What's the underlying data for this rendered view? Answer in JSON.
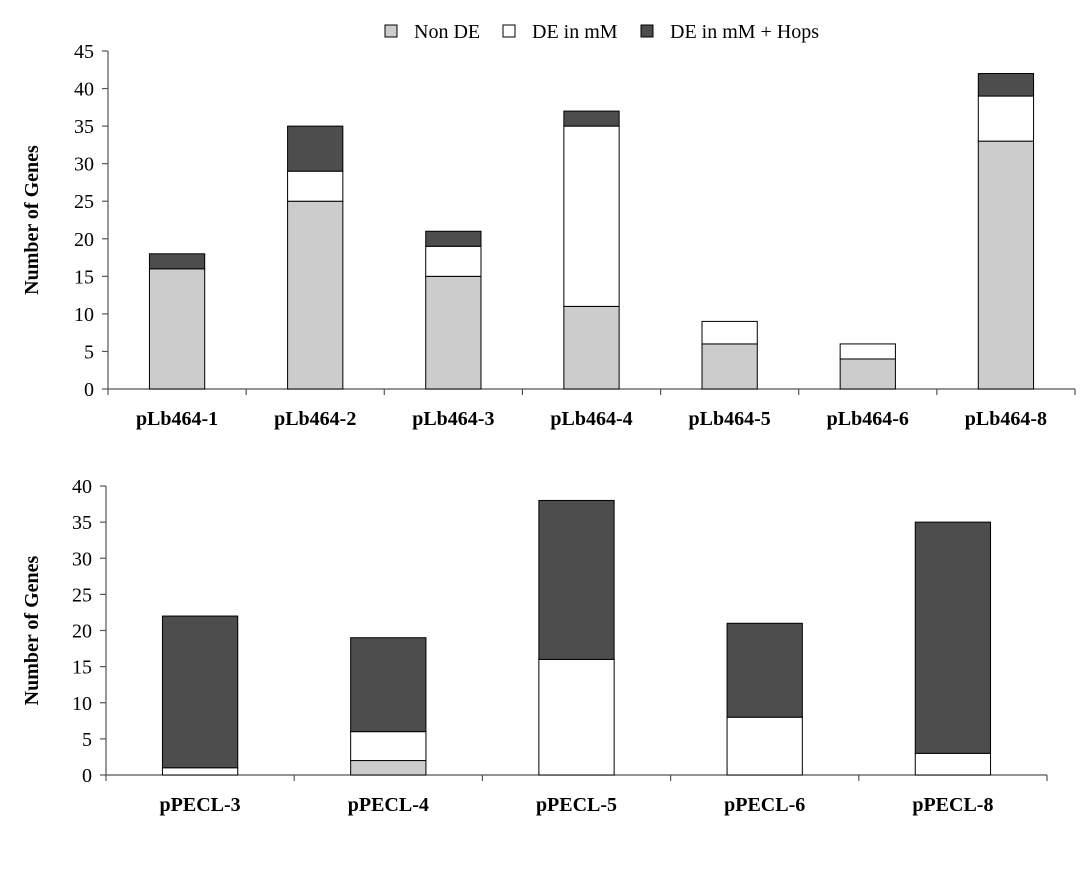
{
  "legend": {
    "items": [
      {
        "label": "Non DE",
        "color": "#cccccc"
      },
      {
        "label": "DE in mM",
        "color": "#ffffff"
      },
      {
        "label": "DE in mM + Hops",
        "color": "#4d4d4d"
      }
    ]
  },
  "chart_data": [
    {
      "type": "bar",
      "stacked": true,
      "ylabel": "Number of Genes",
      "ylim": [
        0,
        45
      ],
      "ytick_step": 5,
      "categories": [
        "pLb464-1",
        "pLb464-2",
        "pLb464-3",
        "pLb464-4",
        "pLb464-5",
        "pLb464-6",
        "pLb464-8"
      ],
      "series": [
        {
          "name": "Non DE",
          "color": "#cccccc",
          "values": [
            16,
            25,
            15,
            11,
            6,
            4,
            33
          ]
        },
        {
          "name": "DE in mM",
          "color": "#ffffff",
          "values": [
            0,
            4,
            4,
            24,
            3,
            2,
            6
          ]
        },
        {
          "name": "DE in mM + Hops",
          "color": "#4d4d4d",
          "values": [
            2,
            6,
            2,
            2,
            0,
            0,
            3
          ]
        }
      ]
    },
    {
      "type": "bar",
      "stacked": true,
      "ylabel": "Number of Genes",
      "ylim": [
        0,
        40
      ],
      "ytick_step": 5,
      "categories": [
        "pPECL-3",
        "pPECL-4",
        "pPECL-5",
        "pPECL-6",
        "pPECL-8"
      ],
      "series": [
        {
          "name": "Non DE",
          "color": "#cccccc",
          "values": [
            0,
            2,
            0,
            0,
            0
          ]
        },
        {
          "name": "DE in mM",
          "color": "#ffffff",
          "values": [
            1,
            4,
            16,
            8,
            3
          ]
        },
        {
          "name": "DE in mM + Hops",
          "color": "#4d4d4d",
          "values": [
            21,
            13,
            22,
            13,
            32
          ]
        }
      ]
    }
  ]
}
